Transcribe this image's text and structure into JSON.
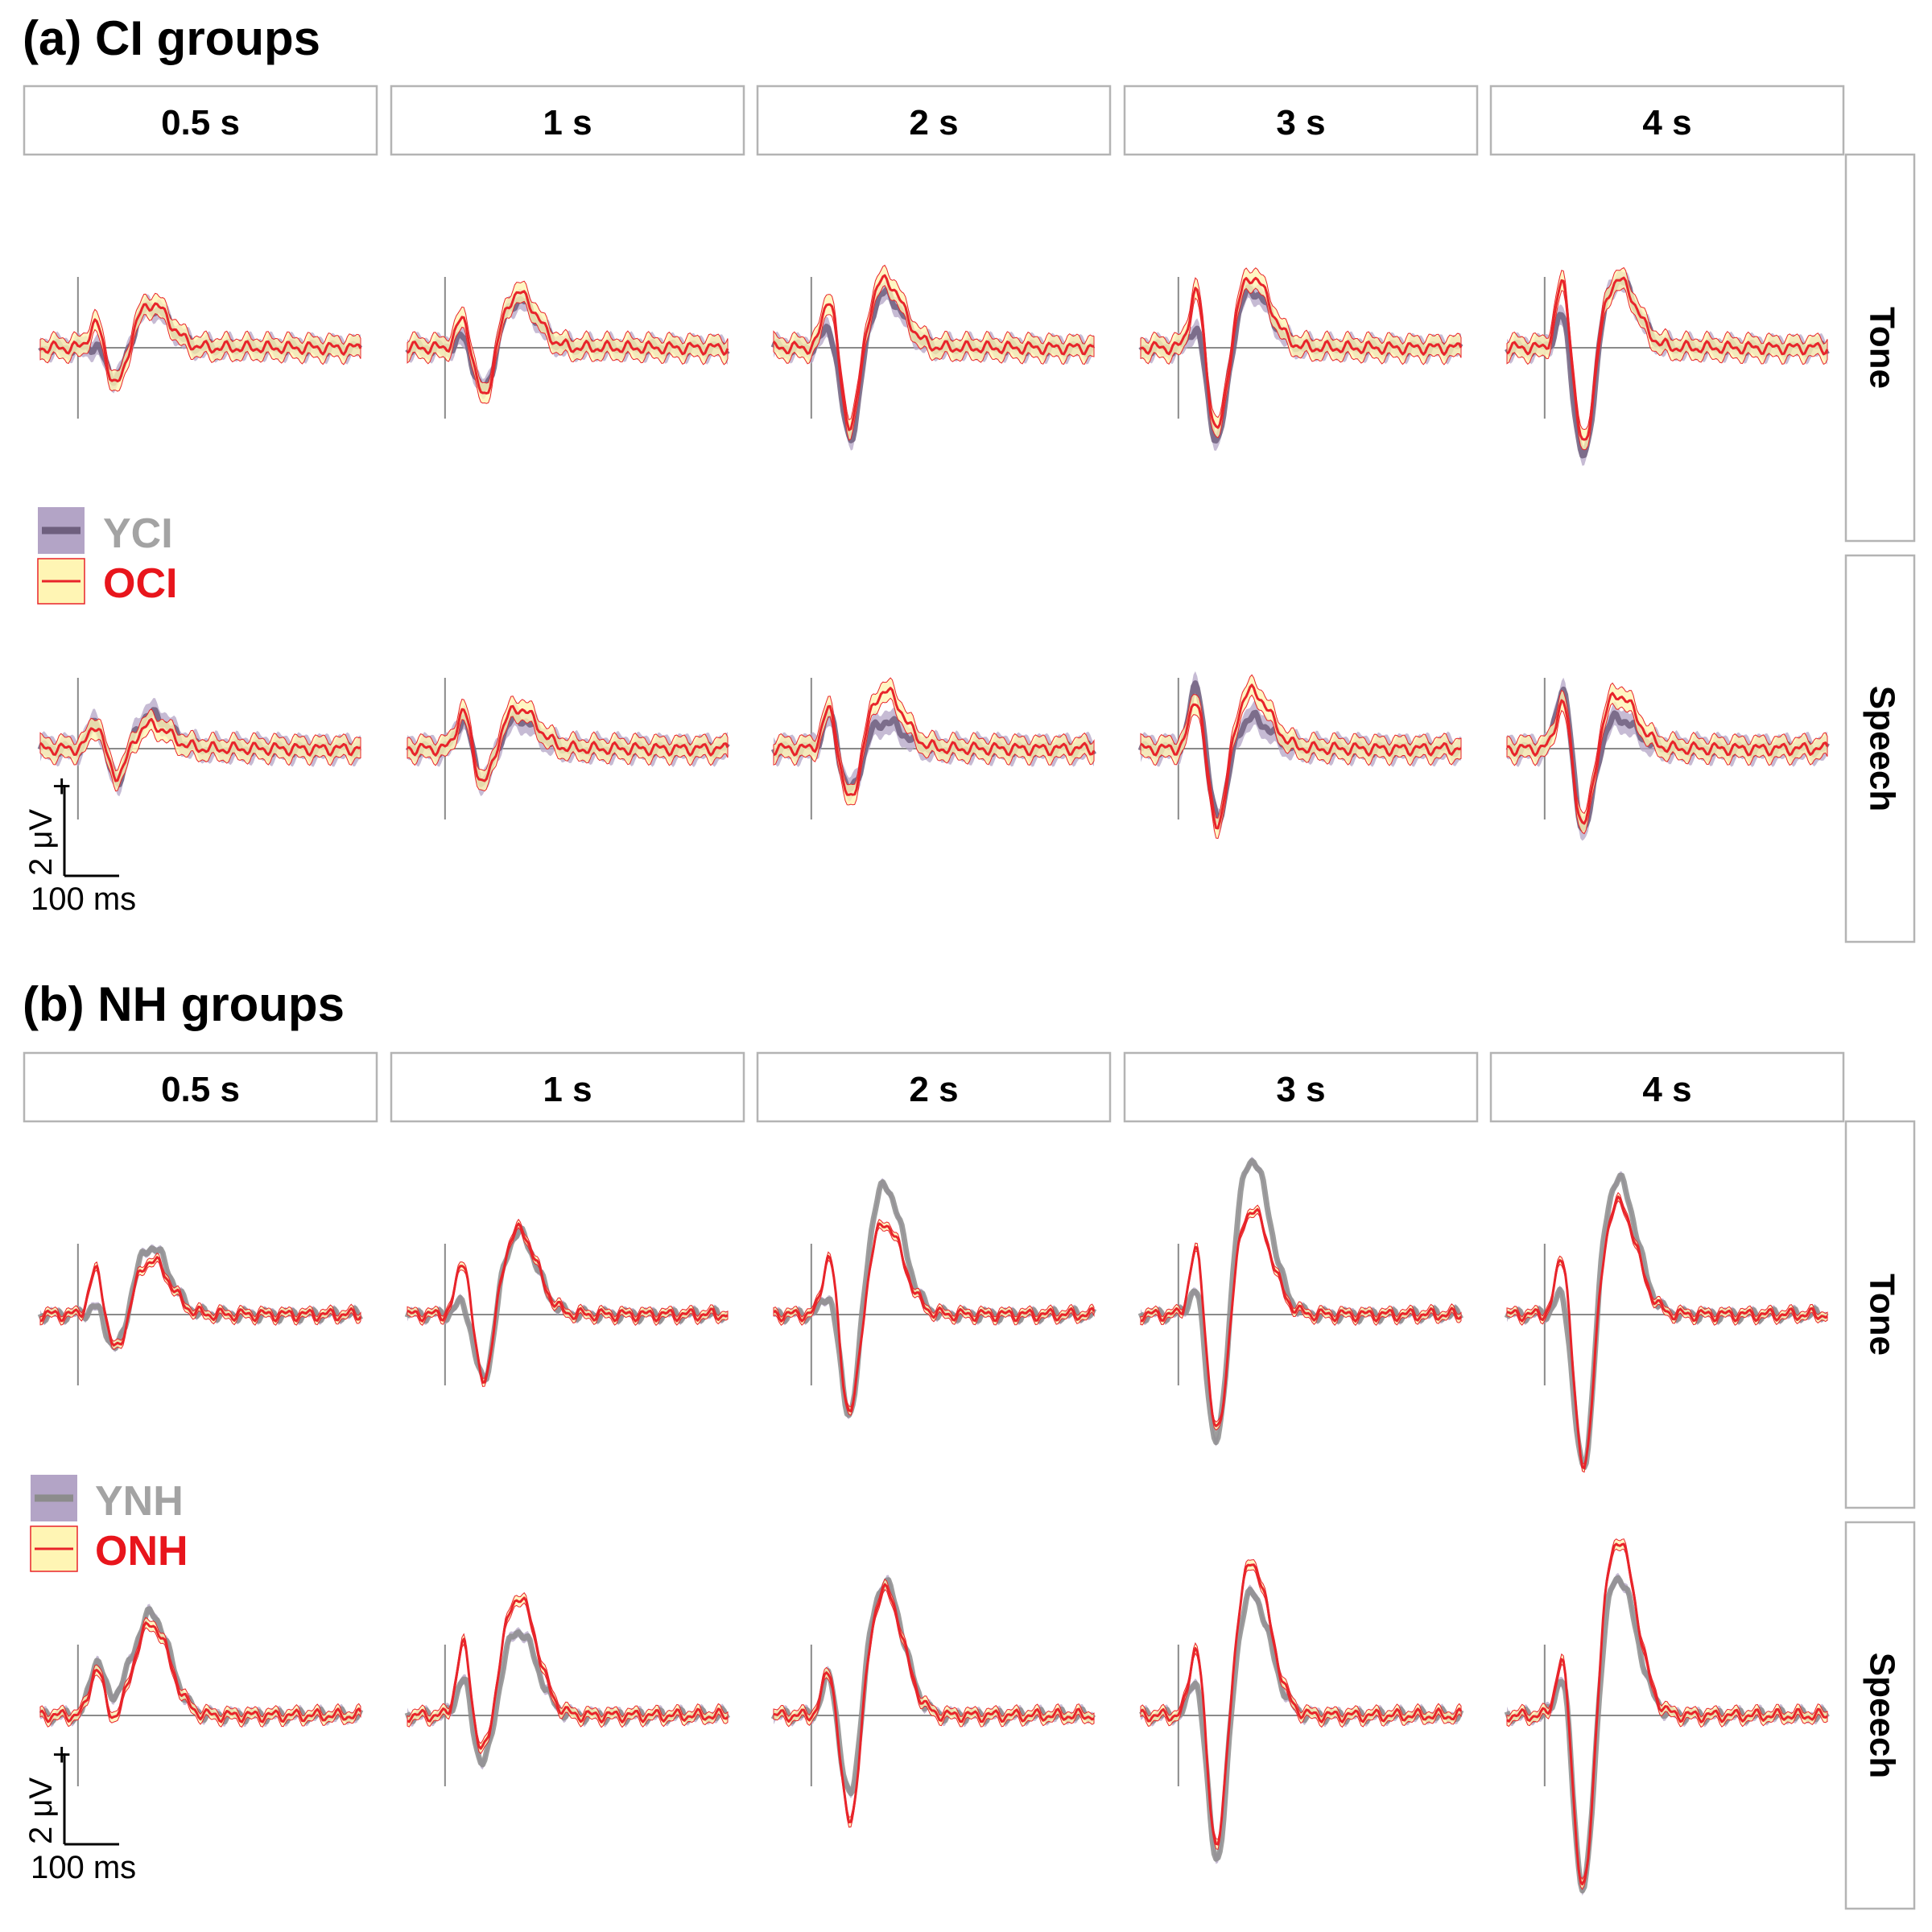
{
  "colors": {
    "young_line": "#6e5f7e",
    "young_band": "#b3a4c6",
    "old_line": "#e8242a",
    "old_band": "#fff5b4",
    "nh_young_line": "#8c8c8c",
    "young_label": "#a3a3a3",
    "old_label": "#e8151c"
  },
  "panels": [
    {
      "title": "(a) CI groups",
      "columns": [
        "0.5 s",
        "1 s",
        "2 s",
        "3 s",
        "4 s"
      ],
      "rows": [
        "Tone",
        "Speech"
      ],
      "legend": [
        {
          "label": "YCI",
          "style": "young"
        },
        {
          "label": "OCI",
          "style": "old"
        }
      ],
      "scale_bar": {
        "amplitude": "2 μV",
        "polarity": "+",
        "time": "100 ms"
      }
    },
    {
      "title": "(b) NH groups",
      "columns": [
        "0.5 s",
        "1 s",
        "2 s",
        "3 s",
        "4 s"
      ],
      "rows": [
        "Tone",
        "Speech"
      ],
      "legend": [
        {
          "label": "YNH",
          "style": "young"
        },
        {
          "label": "ONH",
          "style": "old"
        }
      ],
      "scale_bar": {
        "amplitude": "2 μV",
        "polarity": "+",
        "time": "100 ms"
      }
    }
  ],
  "chart_data": {
    "type": "line",
    "description_units": {
      "x": "ms re stimulus onset",
      "y": "μV"
    },
    "x_range": [
      -100,
      750
    ],
    "series_names": {
      "CI": [
        "YCI",
        "OCI"
      ],
      "NH": [
        "YNH",
        "ONH"
      ]
    },
    "columns": [
      "0.5 s",
      "1 s",
      "2 s",
      "3 s",
      "4 s"
    ],
    "CI": {
      "Tone": {
        "YCI": {
          "p1": [
            0.1,
            0.4,
            0.8,
            0.8,
            1.2
          ],
          "n1": [
            -1.1,
            -1.5,
            -2.9,
            -3.0,
            -3.6
          ],
          "p2": [
            1.2,
            1.4,
            1.6,
            1.7,
            2.0
          ],
          "band": 0.3
        },
        "OCI": {
          "p1": [
            0.8,
            1.0,
            1.7,
            1.9,
            2.2
          ],
          "n1": [
            -1.3,
            -1.7,
            -2.6,
            -2.8,
            -3.2
          ],
          "p2": [
            1.3,
            1.6,
            2.0,
            2.1,
            2.0
          ],
          "band": 0.3
        }
      },
      "Speech": {
        "YCI": {
          "p1": [
            0.9,
            1.0,
            1.1,
            2.1,
            2.0
          ],
          "n1": [
            -1.1,
            -1.1,
            -1.4,
            -2.2,
            -2.5
          ],
          "p2": [
            1.0,
            0.9,
            0.8,
            0.9,
            0.9
          ],
          "band": 0.35
        },
        "OCI": {
          "p1": [
            0.8,
            1.2,
            1.3,
            1.7,
            1.6
          ],
          "n1": [
            -0.9,
            -1.2,
            -1.8,
            -2.5,
            -2.5
          ],
          "p2": [
            0.7,
            1.2,
            1.7,
            1.7,
            1.6
          ],
          "band": 0.3
        }
      }
    },
    "NH": {
      "Tone": {
        "YNH": {
          "p1": [
            0.3,
            0.5,
            0.8,
            1.0,
            0.9
          ],
          "n1": [
            -1.3,
            -2.3,
            -3.5,
            -4.5,
            -5.2
          ],
          "p2": [
            2.0,
            2.4,
            3.8,
            4.6,
            4.0
          ],
          "band": 0.12
        },
        "ONH": {
          "p1": [
            1.4,
            1.8,
            2.0,
            2.2,
            2.1
          ],
          "n1": [
            -1.3,
            -2.3,
            -3.3,
            -4.0,
            -5.0
          ],
          "p2": [
            1.6,
            2.5,
            2.7,
            3.1,
            3.3
          ],
          "band": 0.12
        }
      },
      "Speech": {
        "YNH": {
          "p1": [
            1.6,
            1.2,
            1.4,
            1.4,
            1.5
          ],
          "n1": [
            0.2,
            -1.8,
            -3.0,
            -4.8,
            -5.8
          ],
          "p2": [
            3.0,
            2.5,
            3.9,
            3.6,
            4.1
          ],
          "band": 0.15
        },
        "ONH": {
          "p1": [
            1.4,
            2.2,
            1.6,
            2.4,
            2.0
          ],
          "n1": [
            -0.4,
            -1.6,
            -3.7,
            -4.5,
            -6.0
          ],
          "p2": [
            2.7,
            3.5,
            3.7,
            4.5,
            5.2
          ],
          "band": 0.15
        }
      }
    }
  }
}
